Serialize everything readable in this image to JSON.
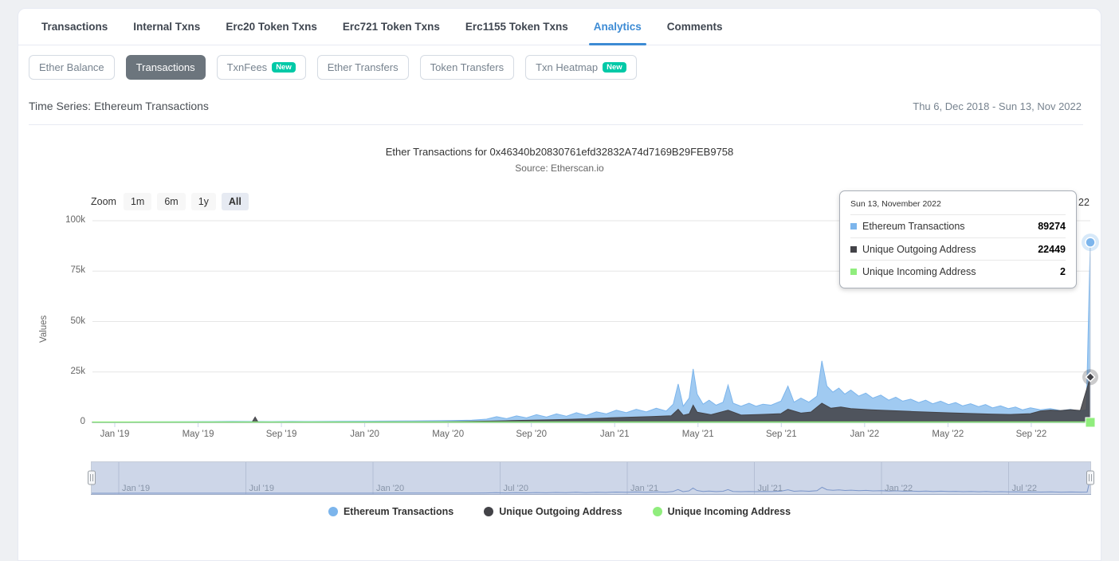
{
  "tabs": {
    "items": [
      {
        "label": "Transactions",
        "active": false
      },
      {
        "label": "Internal Txns",
        "active": false
      },
      {
        "label": "Erc20 Token Txns",
        "active": false
      },
      {
        "label": "Erc721 Token Txns",
        "active": false
      },
      {
        "label": "Erc1155 Token Txns",
        "active": false
      },
      {
        "label": "Analytics",
        "active": true
      },
      {
        "label": "Comments",
        "active": false
      }
    ]
  },
  "subnav": {
    "buttons": [
      {
        "label": "Ether Balance",
        "active": false
      },
      {
        "label": "Transactions",
        "active": true
      },
      {
        "label": "TxnFees",
        "active": false,
        "badge": "New"
      },
      {
        "label": "Ether Transfers",
        "active": false
      },
      {
        "label": "Token Transfers",
        "active": false
      },
      {
        "label": "Txn Heatmap",
        "active": false,
        "badge": "New"
      }
    ]
  },
  "timeseries": {
    "title": "Time Series: Ethereum Transactions",
    "date_range": "Thu 6, Dec 2018 - Sun 13, Nov 2022"
  },
  "chart": {
    "title": "Ether Transactions for 0x46340b20830761efd32832A74d7169B29FEB9758",
    "subtitle": "Source: Etherscan.io",
    "zoom_label": "Zoom",
    "zoom_buttons": [
      "1m",
      "6m",
      "1y",
      "All"
    ],
    "zoom_active": "All",
    "yaxis_title": "Values",
    "range_input_partial": "22"
  },
  "tooltip": {
    "header": "Sun 13, November 2022",
    "rows": [
      {
        "label": "Ethereum Transactions",
        "value": "89274",
        "color": "#7cb5ec"
      },
      {
        "label": "Unique Outgoing Address",
        "value": "22449",
        "color": "#434348"
      },
      {
        "label": "Unique Incoming Address",
        "value": "2",
        "color": "#90ed7d"
      }
    ]
  },
  "chart_data": {
    "type": "area",
    "title": "Ether Transactions for 0x46340b20830761efd32832A74d7169B29FEB9758",
    "subtitle": "Source: Etherscan.io",
    "xlabel": "",
    "ylabel": "Values",
    "ylim": [
      0,
      100000
    ],
    "yticks": [
      "0",
      "25k",
      "50k",
      "75k",
      "100k"
    ],
    "xticks": [
      "Jan '19",
      "May '19",
      "Sep '19",
      "Jan '20",
      "May '20",
      "Sep '20",
      "Jan '21",
      "May '21",
      "Sep '21",
      "Jan '22",
      "May '22",
      "Sep '22"
    ],
    "navigator_ticks": [
      "Jan '19",
      "Jul '19",
      "Jan '20",
      "Jul '20",
      "Jan '21",
      "Jul '21",
      "Jan '22",
      "Jul '22"
    ],
    "x_range": [
      "2018-12-06",
      "2022-11-13"
    ],
    "grid": "horizontal-only",
    "legend_position": "bottom-center",
    "series": [
      {
        "name": "Ethereum Transactions",
        "color": "#7cb5ec",
        "fill": "rgba(124,181,236,0.72)",
        "last_value": 89274,
        "points": [
          [
            0,
            100
          ],
          [
            0.02,
            150
          ],
          [
            0.05,
            250
          ],
          [
            0.08,
            300
          ],
          [
            0.1,
            350
          ],
          [
            0.12,
            400
          ],
          [
            0.14,
            500
          ],
          [
            0.16,
            450
          ],
          [
            0.18,
            400
          ],
          [
            0.2,
            500
          ],
          [
            0.22,
            450
          ],
          [
            0.25,
            550
          ],
          [
            0.28,
            600
          ],
          [
            0.3,
            650
          ],
          [
            0.32,
            700
          ],
          [
            0.34,
            800
          ],
          [
            0.36,
            900
          ],
          [
            0.38,
            1100
          ],
          [
            0.395,
            1600
          ],
          [
            0.405,
            2800
          ],
          [
            0.415,
            1800
          ],
          [
            0.425,
            3200
          ],
          [
            0.435,
            2200
          ],
          [
            0.445,
            3800
          ],
          [
            0.455,
            2600
          ],
          [
            0.465,
            4200
          ],
          [
            0.475,
            3000
          ],
          [
            0.485,
            4800
          ],
          [
            0.495,
            3400
          ],
          [
            0.505,
            5200
          ],
          [
            0.515,
            4200
          ],
          [
            0.525,
            6000
          ],
          [
            0.535,
            4800
          ],
          [
            0.545,
            6500
          ],
          [
            0.555,
            5200
          ],
          [
            0.565,
            7000
          ],
          [
            0.575,
            5600
          ],
          [
            0.582,
            9000
          ],
          [
            0.587,
            19000
          ],
          [
            0.592,
            8000
          ],
          [
            0.598,
            12000
          ],
          [
            0.602,
            26500
          ],
          [
            0.606,
            14000
          ],
          [
            0.612,
            9000
          ],
          [
            0.618,
            11000
          ],
          [
            0.625,
            8500
          ],
          [
            0.632,
            10000
          ],
          [
            0.637,
            18500
          ],
          [
            0.642,
            9500
          ],
          [
            0.65,
            8000
          ],
          [
            0.658,
            9500
          ],
          [
            0.665,
            8000
          ],
          [
            0.672,
            9000
          ],
          [
            0.68,
            8500
          ],
          [
            0.69,
            10500
          ],
          [
            0.697,
            18000
          ],
          [
            0.703,
            10000
          ],
          [
            0.71,
            12000
          ],
          [
            0.718,
            10000
          ],
          [
            0.726,
            13000
          ],
          [
            0.731,
            30500
          ],
          [
            0.736,
            18000
          ],
          [
            0.742,
            15000
          ],
          [
            0.748,
            17000
          ],
          [
            0.754,
            14000
          ],
          [
            0.76,
            16000
          ],
          [
            0.768,
            13000
          ],
          [
            0.775,
            14500
          ],
          [
            0.782,
            12000
          ],
          [
            0.79,
            13500
          ],
          [
            0.798,
            11000
          ],
          [
            0.805,
            12500
          ],
          [
            0.812,
            10500
          ],
          [
            0.82,
            11500
          ],
          [
            0.828,
            9800
          ],
          [
            0.835,
            11000
          ],
          [
            0.842,
            9200
          ],
          [
            0.85,
            10500
          ],
          [
            0.858,
            8800
          ],
          [
            0.865,
            9800
          ],
          [
            0.872,
            8200
          ],
          [
            0.88,
            9200
          ],
          [
            0.888,
            7800
          ],
          [
            0.895,
            8800
          ],
          [
            0.902,
            7200
          ],
          [
            0.91,
            8200
          ],
          [
            0.918,
            6800
          ],
          [
            0.925,
            7600
          ],
          [
            0.932,
            6200
          ],
          [
            0.94,
            7200
          ],
          [
            0.95,
            6200
          ],
          [
            0.96,
            6800
          ],
          [
            0.97,
            5800
          ],
          [
            0.98,
            6400
          ],
          [
            0.99,
            5600
          ],
          [
            0.996,
            6200
          ],
          [
            1,
            89274
          ]
        ]
      },
      {
        "name": "Unique Outgoing Address",
        "color": "#434348",
        "fill": "rgba(67,67,72,0.88)",
        "last_value": 22449,
        "points": [
          [
            0,
            20
          ],
          [
            0.05,
            50
          ],
          [
            0.1,
            80
          ],
          [
            0.155,
            80
          ],
          [
            0.16,
            120
          ],
          [
            0.163,
            2600
          ],
          [
            0.166,
            120
          ],
          [
            0.2,
            130
          ],
          [
            0.25,
            160
          ],
          [
            0.3,
            220
          ],
          [
            0.35,
            320
          ],
          [
            0.4,
            650
          ],
          [
            0.42,
            850
          ],
          [
            0.44,
            1050
          ],
          [
            0.46,
            1250
          ],
          [
            0.48,
            1550
          ],
          [
            0.5,
            1850
          ],
          [
            0.52,
            2250
          ],
          [
            0.54,
            2550
          ],
          [
            0.56,
            2850
          ],
          [
            0.58,
            3250
          ],
          [
            0.587,
            6500
          ],
          [
            0.592,
            3500
          ],
          [
            0.598,
            4200
          ],
          [
            0.602,
            8500
          ],
          [
            0.606,
            5000
          ],
          [
            0.62,
            3800
          ],
          [
            0.637,
            6000
          ],
          [
            0.65,
            3600
          ],
          [
            0.67,
            3900
          ],
          [
            0.69,
            4300
          ],
          [
            0.697,
            6500
          ],
          [
            0.71,
            4600
          ],
          [
            0.72,
            5100
          ],
          [
            0.731,
            9500
          ],
          [
            0.74,
            7000
          ],
          [
            0.75,
            7600
          ],
          [
            0.76,
            6800
          ],
          [
            0.78,
            6200
          ],
          [
            0.8,
            5800
          ],
          [
            0.82,
            5400
          ],
          [
            0.84,
            5000
          ],
          [
            0.86,
            4700
          ],
          [
            0.88,
            4400
          ],
          [
            0.9,
            4100
          ],
          [
            0.92,
            3900
          ],
          [
            0.94,
            4300
          ],
          [
            0.95,
            5600
          ],
          [
            0.96,
            6100
          ],
          [
            0.97,
            5800
          ],
          [
            0.98,
            6300
          ],
          [
            0.99,
            5900
          ],
          [
            1,
            22449
          ]
        ]
      },
      {
        "name": "Unique Incoming Address",
        "color": "#90ed7d",
        "fill": "none",
        "last_value": 2,
        "points": [
          [
            0,
            1
          ],
          [
            0.5,
            1
          ],
          [
            1,
            2
          ]
        ]
      }
    ]
  }
}
